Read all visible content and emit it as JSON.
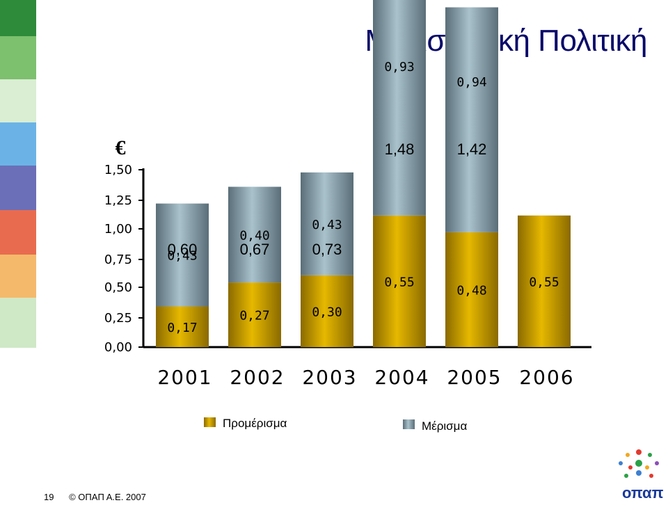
{
  "slide": {
    "title": "Μερισματική Πολιτική",
    "page_number": "19",
    "copyright": "© ΟΠΑΠ Α.Ε. 2007",
    "logo_text": "οπαπ"
  },
  "chart_data": {
    "type": "bar",
    "stacked": true,
    "unit_label": "€",
    "categories": [
      "2001",
      "2002",
      "2003",
      "2004",
      "2005",
      "2006"
    ],
    "series": [
      {
        "name": "Προμέρισμα",
        "values": [
          0.17,
          0.27,
          0.3,
          0.55,
          0.48,
          0.55
        ],
        "labels": [
          "0,17",
          "0,27",
          "0,30",
          "0,55",
          "0,48",
          "0,55"
        ],
        "color": "#e6b800"
      },
      {
        "name": "Μέρισμα",
        "values": [
          0.43,
          0.4,
          0.43,
          0.93,
          0.94,
          null
        ],
        "labels": [
          "0,43",
          "0,40",
          "0,43",
          "0,93",
          "0,94",
          ""
        ],
        "color": "#8fa8b3"
      }
    ],
    "totals": [
      "0,60",
      "0,67",
      "0,73",
      "1,48",
      "1,42",
      ""
    ],
    "y_ticks": [
      "0,00",
      "0,25",
      "0,50",
      "0,75",
      "1,00",
      "1,25",
      "1,50"
    ],
    "ylim": [
      0,
      1.5
    ],
    "legend_position": "bottom"
  },
  "colors": {
    "title": "#0a0a6a",
    "interim": "#e6b800",
    "final": "#8fa8b3",
    "axis": "#000000"
  }
}
